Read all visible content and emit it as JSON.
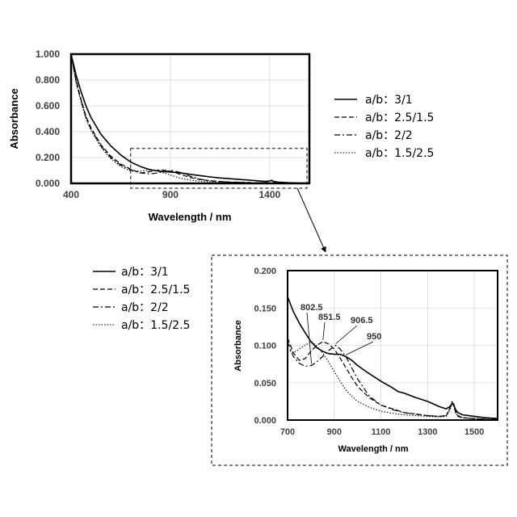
{
  "chart_data": [
    {
      "type": "line",
      "panel": "overview",
      "xlabel": "Wavelength / nm",
      "ylabel": "Absorbance",
      "xlim": [
        400,
        1600
      ],
      "ylim": [
        0,
        1.0
      ],
      "x_ticks": [
        "400",
        "900",
        "1400"
      ],
      "y_ticks": [
        "0.000",
        "0.200",
        "0.400",
        "0.600",
        "0.800",
        "1.000"
      ],
      "grid": true,
      "legend_position": "right",
      "zoom_region": {
        "x": [
          700,
          1600
        ],
        "y": [
          0,
          0.27
        ]
      },
      "series": [
        {
          "name": "a/b：3/1",
          "style": "solid",
          "x": [
            400,
            425,
            450,
            475,
            500,
            550,
            600,
            650,
            700,
            750,
            800,
            850,
            900,
            950,
            1000,
            1050,
            1100,
            1150,
            1200,
            1250,
            1300,
            1350,
            1380,
            1400,
            1410,
            1420,
            1440,
            1500,
            1550,
            1600
          ],
          "y": [
            1.0,
            0.84,
            0.71,
            0.6,
            0.51,
            0.38,
            0.29,
            0.22,
            0.165,
            0.13,
            0.105,
            0.093,
            0.088,
            0.082,
            0.07,
            0.06,
            0.05,
            0.042,
            0.036,
            0.03,
            0.025,
            0.018,
            0.015,
            0.019,
            0.022,
            0.015,
            0.01,
            0.005,
            0.003,
            0.002
          ]
        },
        {
          "name": "a/b：2.5/1.5",
          "style": "dashed",
          "x": [
            400,
            425,
            450,
            475,
            500,
            550,
            600,
            650,
            700,
            750,
            800,
            851.5,
            900,
            950,
            1000,
            1050,
            1100,
            1150,
            1200,
            1250,
            1300,
            1350,
            1380,
            1400,
            1410,
            1420,
            1440,
            1500,
            1550,
            1600
          ],
          "y": [
            1.0,
            0.8,
            0.65,
            0.52,
            0.43,
            0.3,
            0.21,
            0.15,
            0.11,
            0.08,
            0.092,
            0.105,
            0.095,
            0.07,
            0.045,
            0.03,
            0.02,
            0.015,
            0.01,
            0.008,
            0.006,
            0.005,
            0.006,
            0.018,
            0.024,
            0.012,
            0.004,
            0.002,
            0.001,
            0.001
          ]
        },
        {
          "name": "a/b：2/2",
          "style": "dashdot",
          "x": [
            400,
            425,
            450,
            475,
            500,
            550,
            600,
            650,
            700,
            750,
            802.5,
            850,
            906.5,
            950,
            1000,
            1050,
            1100,
            1150,
            1200,
            1250,
            1300,
            1350,
            1380,
            1400,
            1410,
            1420,
            1440,
            1500,
            1550,
            1600
          ],
          "y": [
            1.0,
            0.79,
            0.64,
            0.51,
            0.42,
            0.29,
            0.2,
            0.14,
            0.105,
            0.08,
            0.073,
            0.085,
            0.1,
            0.085,
            0.055,
            0.032,
            0.02,
            0.014,
            0.01,
            0.008,
            0.006,
            0.005,
            0.006,
            0.02,
            0.025,
            0.012,
            0.004,
            0.002,
            0.001,
            0.001
          ]
        },
        {
          "name": "a/b：1.5/2.5",
          "style": "dotted",
          "x": [
            400,
            425,
            450,
            475,
            500,
            550,
            600,
            650,
            700,
            750,
            802.5,
            850,
            900,
            950,
            1000,
            1050,
            1100,
            1150,
            1200,
            1250,
            1300,
            1350,
            1380,
            1400,
            1410,
            1420,
            1440,
            1500,
            1550,
            1600
          ],
          "y": [
            1.0,
            0.78,
            0.63,
            0.5,
            0.41,
            0.28,
            0.19,
            0.13,
            0.095,
            0.095,
            0.105,
            0.09,
            0.065,
            0.04,
            0.025,
            0.017,
            0.012,
            0.009,
            0.007,
            0.006,
            0.005,
            0.004,
            0.005,
            0.018,
            0.022,
            0.01,
            0.003,
            0.002,
            0.001,
            0.001
          ]
        }
      ]
    },
    {
      "type": "line",
      "panel": "zoom",
      "xlabel": "Wavelength / nm",
      "ylabel": "Absorbance",
      "xlim": [
        700,
        1600
      ],
      "ylim": [
        0,
        0.2
      ],
      "x_ticks": [
        "700",
        "900",
        "1100",
        "1300",
        "1500"
      ],
      "y_ticks": [
        "0.000",
        "0.050",
        "0.100",
        "0.150",
        "0.200"
      ],
      "grid": true,
      "legend_position": "left",
      "annotations": [
        "802.5",
        "851.5",
        "906.5",
        "950"
      ],
      "series": [
        {
          "name": "a/b：3/1",
          "style": "solid",
          "x": [
            700,
            725,
            750,
            775,
            800,
            825,
            850,
            875,
            900,
            925,
            950,
            975,
            1000,
            1050,
            1100,
            1150,
            1175,
            1200,
            1250,
            1300,
            1350,
            1380,
            1395,
            1405,
            1412,
            1420,
            1430,
            1450,
            1500,
            1550,
            1600
          ],
          "y": [
            0.165,
            0.145,
            0.13,
            0.117,
            0.105,
            0.097,
            0.092,
            0.089,
            0.088,
            0.088,
            0.085,
            0.08,
            0.073,
            0.062,
            0.052,
            0.043,
            0.038,
            0.036,
            0.03,
            0.025,
            0.018,
            0.015,
            0.018,
            0.022,
            0.02,
            0.014,
            0.01,
            0.007,
            0.005,
            0.003,
            0.002
          ]
        },
        {
          "name": "a/b：2.5/1.5",
          "style": "dashed",
          "x": [
            700,
            725,
            750,
            775,
            800,
            825,
            851.5,
            875,
            900,
            925,
            950,
            975,
            1000,
            1050,
            1100,
            1150,
            1200,
            1250,
            1300,
            1350,
            1380,
            1395,
            1405,
            1412,
            1420,
            1430,
            1450,
            1500,
            1550,
            1600
          ],
          "y": [
            0.11,
            0.09,
            0.08,
            0.082,
            0.092,
            0.1,
            0.105,
            0.102,
            0.095,
            0.083,
            0.07,
            0.057,
            0.045,
            0.03,
            0.02,
            0.015,
            0.01,
            0.008,
            0.006,
            0.005,
            0.006,
            0.015,
            0.024,
            0.02,
            0.01,
            0.005,
            0.003,
            0.002,
            0.001,
            0.001
          ]
        },
        {
          "name": "a/b：2/2",
          "style": "dashdot",
          "x": [
            700,
            725,
            750,
            775,
            802.5,
            825,
            850,
            875,
            906.5,
            925,
            950,
            975,
            1000,
            1050,
            1100,
            1150,
            1200,
            1250,
            1300,
            1350,
            1380,
            1395,
            1405,
            1412,
            1420,
            1430,
            1450,
            1500,
            1550,
            1600
          ],
          "y": [
            0.105,
            0.085,
            0.076,
            0.072,
            0.073,
            0.078,
            0.085,
            0.093,
            0.1,
            0.095,
            0.085,
            0.07,
            0.055,
            0.032,
            0.02,
            0.014,
            0.01,
            0.008,
            0.006,
            0.005,
            0.006,
            0.016,
            0.025,
            0.022,
            0.012,
            0.006,
            0.003,
            0.002,
            0.001,
            0.001
          ]
        },
        {
          "name": "a/b：1.5/2.5",
          "style": "dotted",
          "x": [
            700,
            725,
            750,
            775,
            802.5,
            825,
            850,
            875,
            900,
            925,
            950,
            975,
            1000,
            1050,
            1100,
            1150,
            1200,
            1250,
            1300,
            1350,
            1380,
            1395,
            1405,
            1412,
            1420,
            1430,
            1450,
            1500,
            1550,
            1600
          ],
          "y": [
            0.095,
            0.09,
            0.095,
            0.1,
            0.105,
            0.099,
            0.09,
            0.078,
            0.065,
            0.052,
            0.04,
            0.032,
            0.025,
            0.017,
            0.012,
            0.009,
            0.007,
            0.006,
            0.005,
            0.004,
            0.005,
            0.013,
            0.022,
            0.019,
            0.01,
            0.005,
            0.003,
            0.002,
            0.001,
            0.001
          ]
        }
      ]
    }
  ]
}
